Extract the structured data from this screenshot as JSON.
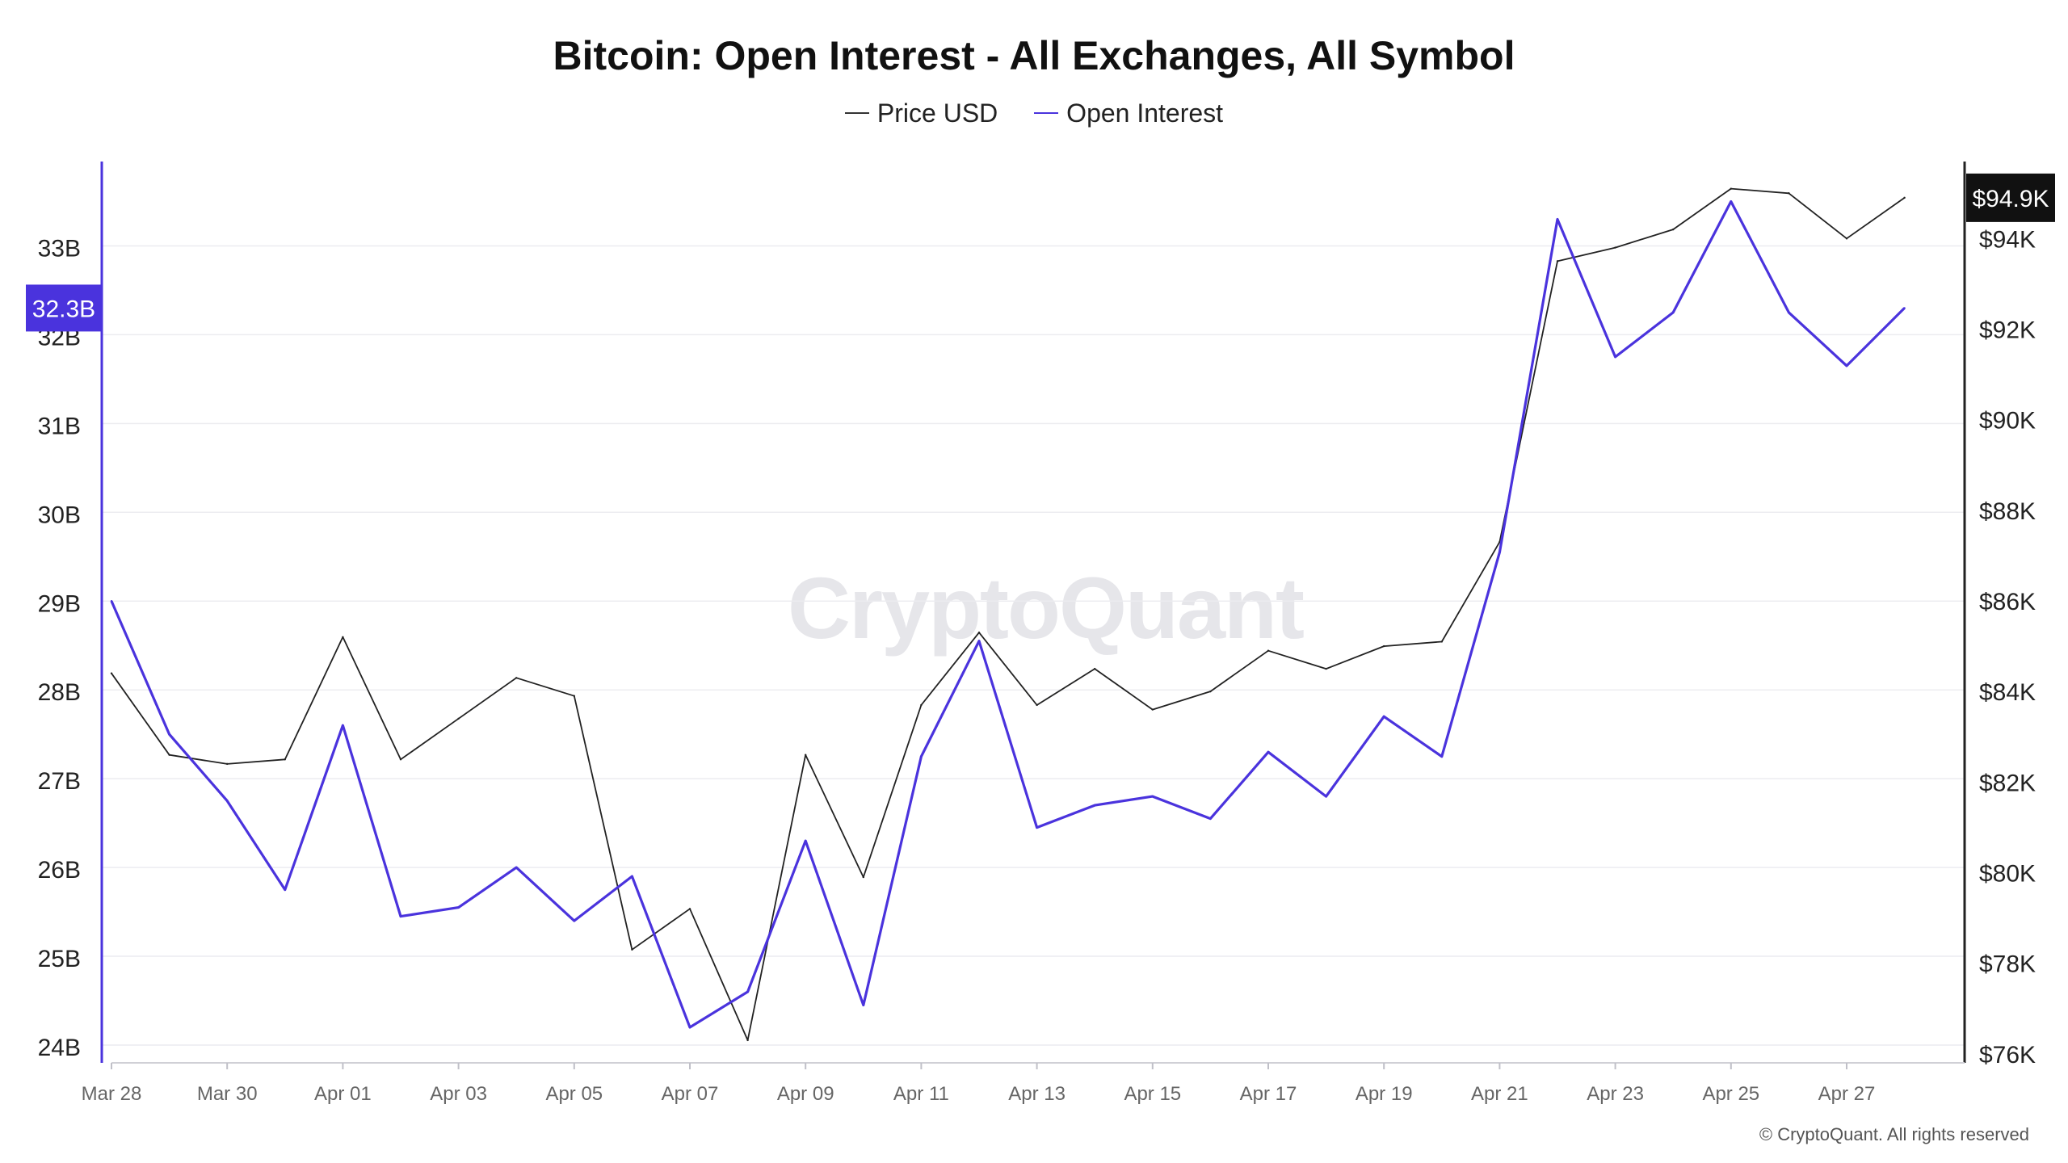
{
  "chart_data": {
    "type": "line",
    "title": "Bitcoin: Open Interest - All Exchanges, All Symbol",
    "x": [
      "Mar 28",
      "Mar 29",
      "Mar 30",
      "Mar 31",
      "Apr 01",
      "Apr 02",
      "Apr 03",
      "Apr 04",
      "Apr 05",
      "Apr 06",
      "Apr 07",
      "Apr 08",
      "Apr 09",
      "Apr 10",
      "Apr 11",
      "Apr 12",
      "Apr 13",
      "Apr 14",
      "Apr 15",
      "Apr 16",
      "Apr 17",
      "Apr 18",
      "Apr 19",
      "Apr 20",
      "Apr 21",
      "Apr 22",
      "Apr 23",
      "Apr 24",
      "Apr 25",
      "Apr 26",
      "Apr 27",
      "Apr 28"
    ],
    "x_tick_labels": [
      "Mar 28",
      "Mar 30",
      "Apr 01",
      "Apr 03",
      "Apr 05",
      "Apr 07",
      "Apr 09",
      "Apr 11",
      "Apr 13",
      "Apr 15",
      "Apr 17",
      "Apr 19",
      "Apr 21",
      "Apr 23",
      "Apr 25",
      "Apr 27"
    ],
    "series": [
      {
        "name": "Price USD",
        "axis": "right",
        "color": "#222222",
        "values": [
          84400,
          82600,
          82400,
          82500,
          85200,
          82500,
          83400,
          84300,
          83900,
          78300,
          79200,
          76300,
          82600,
          79900,
          83700,
          85300,
          83700,
          84500,
          83600,
          84000,
          84900,
          84500,
          85000,
          85100,
          87300,
          93500,
          93800,
          94200,
          95100,
          95000,
          94000,
          94900
        ]
      },
      {
        "name": "Open Interest",
        "axis": "left",
        "color": "#4a33dd",
        "values": [
          29.0,
          27.5,
          26.75,
          25.75,
          27.6,
          25.45,
          25.55,
          26.0,
          25.4,
          25.9,
          24.2,
          24.6,
          26.3,
          24.45,
          27.25,
          28.55,
          26.45,
          26.7,
          26.8,
          26.55,
          27.3,
          26.8,
          27.7,
          27.25,
          29.55,
          33.3,
          31.75,
          32.25,
          33.5,
          32.25,
          31.65,
          32.3
        ]
      }
    ],
    "y_left": {
      "ticks": [
        "24B",
        "25B",
        "26B",
        "27B",
        "28B",
        "29B",
        "30B",
        "31B",
        "32B",
        "33B"
      ],
      "tick_values": [
        24,
        25,
        26,
        27,
        28,
        29,
        30,
        31,
        32,
        33
      ],
      "range": [
        23.8,
        33.95
      ],
      "current_label": "32.3B",
      "current_value": 32.3
    },
    "y_right": {
      "ticks": [
        "$76K",
        "$78K",
        "$80K",
        "$82K",
        "$84K",
        "$86K",
        "$88K",
        "$90K",
        "$92K",
        "$94K"
      ],
      "tick_values": [
        76000,
        78000,
        80000,
        82000,
        84000,
        86000,
        88000,
        90000,
        92000,
        94000
      ],
      "range": [
        75800,
        95700
      ],
      "current_label": "$94.9K",
      "current_value": 94900
    },
    "grid": true,
    "legend": "top-center"
  },
  "legend": {
    "price": "Price USD",
    "oi": "Open Interest"
  },
  "watermark": "CryptoQuant",
  "copyright": "© CryptoQuant. All rights reserved"
}
